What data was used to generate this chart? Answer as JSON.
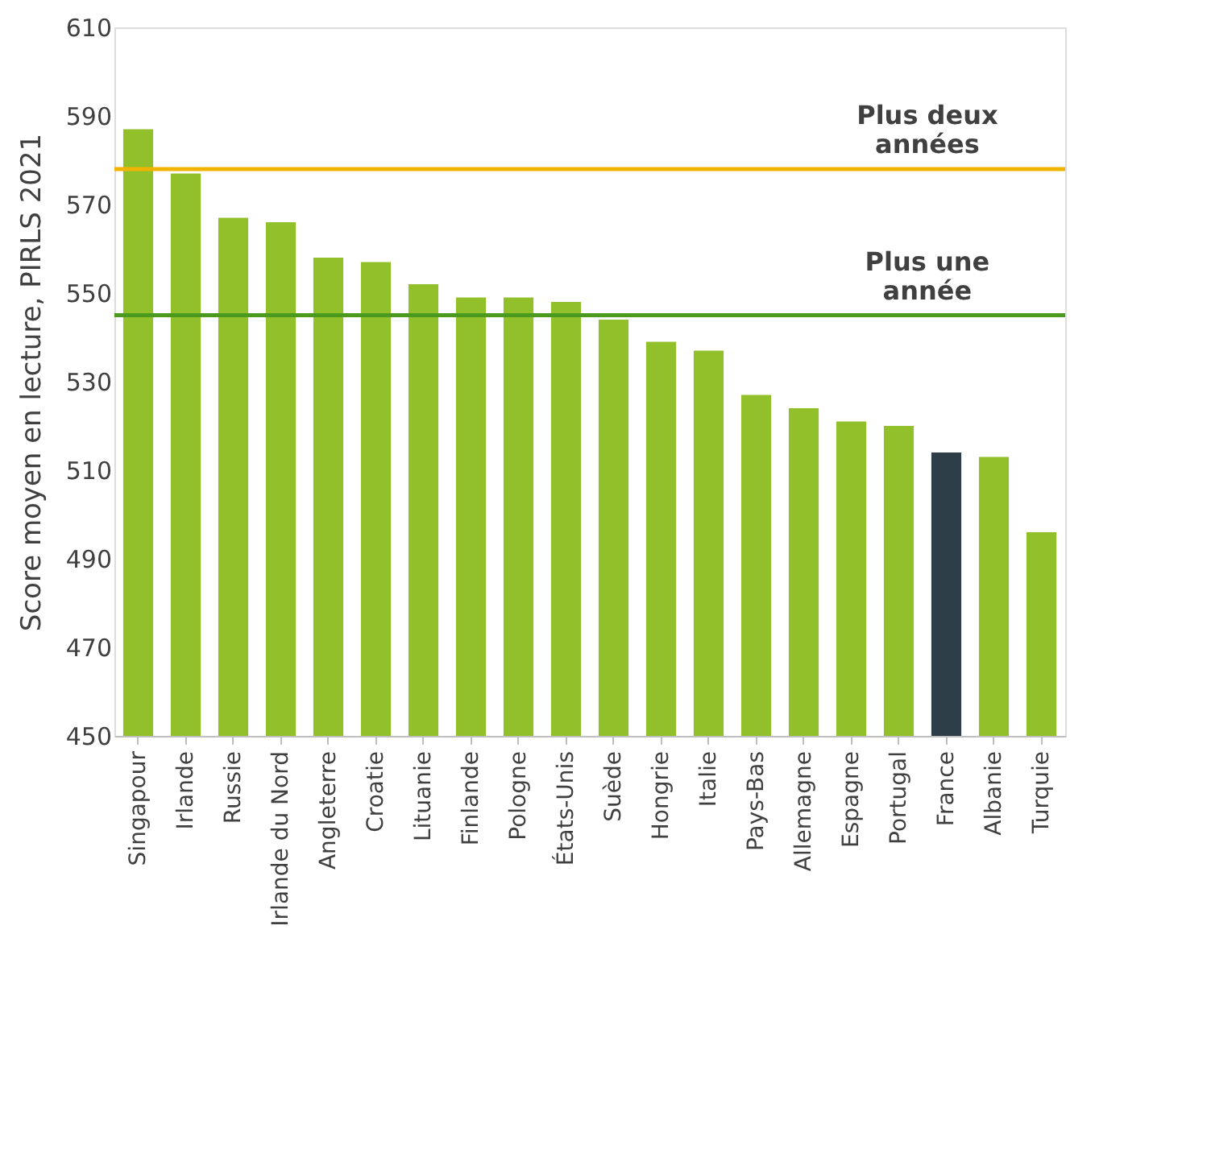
{
  "chart_data": {
    "type": "bar",
    "ylabel": "Score moyen en lecture, PIRLS 2021",
    "categories": [
      "Singapour",
      "Irlande",
      "Russie",
      "Irlande du Nord",
      "Angleterre",
      "Croatie",
      "Lituanie",
      "Finlande",
      "Pologne",
      "États-Unis",
      "Suède",
      "Hongrie",
      "Italie",
      "Pays-Bas",
      "Allemagne",
      "Espagne",
      "Portugal",
      "France",
      "Albanie",
      "Turquie"
    ],
    "values": [
      587,
      577,
      567,
      566,
      558,
      557,
      552,
      549,
      549,
      548,
      544,
      539,
      537,
      527,
      524,
      521,
      520,
      514,
      513,
      496
    ],
    "colors": [
      "#92c02a",
      "#92c02a",
      "#92c02a",
      "#92c02a",
      "#92c02a",
      "#92c02a",
      "#92c02a",
      "#92c02a",
      "#92c02a",
      "#92c02a",
      "#92c02a",
      "#92c02a",
      "#92c02a",
      "#92c02a",
      "#92c02a",
      "#92c02a",
      "#92c02a",
      "#2d3e48",
      "#92c02a",
      "#92c02a"
    ],
    "ylim": [
      450,
      610
    ],
    "yticks": [
      450,
      470,
      490,
      510,
      530,
      550,
      570,
      590,
      610
    ],
    "grid": false,
    "ref_lines": [
      {
        "axis": "y",
        "value": 578,
        "label": "Plus deux\nannées",
        "color": "#f0b400",
        "line_style": "solid"
      },
      {
        "axis": "y",
        "value": 545,
        "label": "Plus une\nannée",
        "color": "#4a9a1e",
        "line_style": "solid"
      }
    ]
  }
}
